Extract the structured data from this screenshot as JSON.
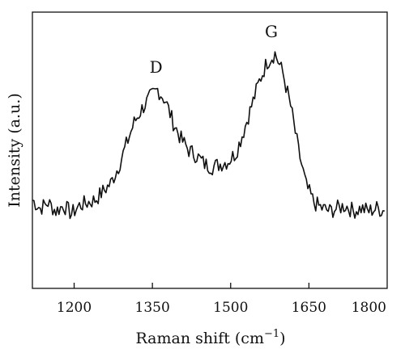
{
  "chart_data": {
    "type": "line",
    "title": "",
    "xlabel": "Raman shift (cm",
    "xlabel_sup": "−1",
    "xlabel_close": ")",
    "ylabel": "Intensity (a.u.)",
    "xlim": [
      1120,
      1800
    ],
    "ylim": [
      0,
      1
    ],
    "x_ticks": [
      1200,
      1350,
      1500,
      1650,
      1800
    ],
    "x_tick_labels": [
      "1200",
      "1350",
      "1500",
      "1650",
      "1800"
    ],
    "y_ticks_shown": false,
    "grid": false,
    "annotations": [
      {
        "text": "D",
        "x": 1357,
        "y": 0.78
      },
      {
        "text": "G",
        "x": 1578,
        "y": 0.91
      }
    ],
    "series": [
      {
        "x": [
          1120,
          1135,
          1150,
          1165,
          1180,
          1195,
          1210,
          1225,
          1240,
          1255,
          1270,
          1285,
          1300,
          1315,
          1330,
          1345,
          1360,
          1375,
          1390,
          1405,
          1420,
          1435,
          1450,
          1465,
          1480,
          1495,
          1510,
          1525,
          1540,
          1555,
          1570,
          1585,
          1600,
          1615,
          1630,
          1645,
          1660,
          1675,
          1690,
          1705,
          1720,
          1735,
          1750,
          1765,
          1780,
          1795
        ],
        "values": [
          0.32,
          0.29,
          0.31,
          0.28,
          0.3,
          0.27,
          0.3,
          0.31,
          0.32,
          0.35,
          0.38,
          0.44,
          0.52,
          0.6,
          0.65,
          0.69,
          0.72,
          0.68,
          0.6,
          0.54,
          0.5,
          0.48,
          0.45,
          0.44,
          0.45,
          0.46,
          0.49,
          0.57,
          0.66,
          0.75,
          0.82,
          0.85,
          0.78,
          0.66,
          0.5,
          0.37,
          0.31,
          0.29,
          0.28,
          0.29,
          0.3,
          0.28,
          0.29,
          0.28,
          0.29,
          0.28
        ]
      }
    ]
  }
}
